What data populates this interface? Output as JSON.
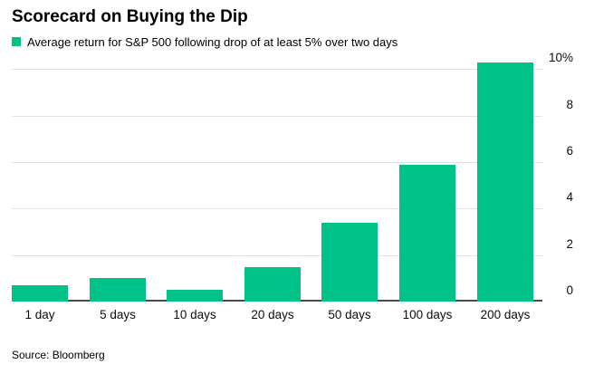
{
  "chart_data": {
    "type": "bar",
    "title": "Scorecard on Buying the Dip",
    "legend": "Average return for S&P 500 following drop of at least 5% over two days",
    "categories": [
      "1 day",
      "5 days",
      "10 days",
      "20 days",
      "50 days",
      "100 days",
      "200 days"
    ],
    "values": [
      0.7,
      1.0,
      0.5,
      1.5,
      3.4,
      5.9,
      10.3
    ],
    "unit": "%",
    "y_ticks": [
      0,
      2,
      4,
      6,
      8,
      10
    ],
    "y_tick_labels": [
      "0",
      "2",
      "4",
      "6",
      "8",
      "10%"
    ],
    "ylim": [
      0,
      10.52
    ],
    "grid": true,
    "axis_side": "right",
    "legend_position": "top-left",
    "bar_color": "#00c289",
    "gridline_color": "#e4e4e4",
    "baseline_color": "#4a4a4a",
    "source": "Source: Bloomberg"
  }
}
